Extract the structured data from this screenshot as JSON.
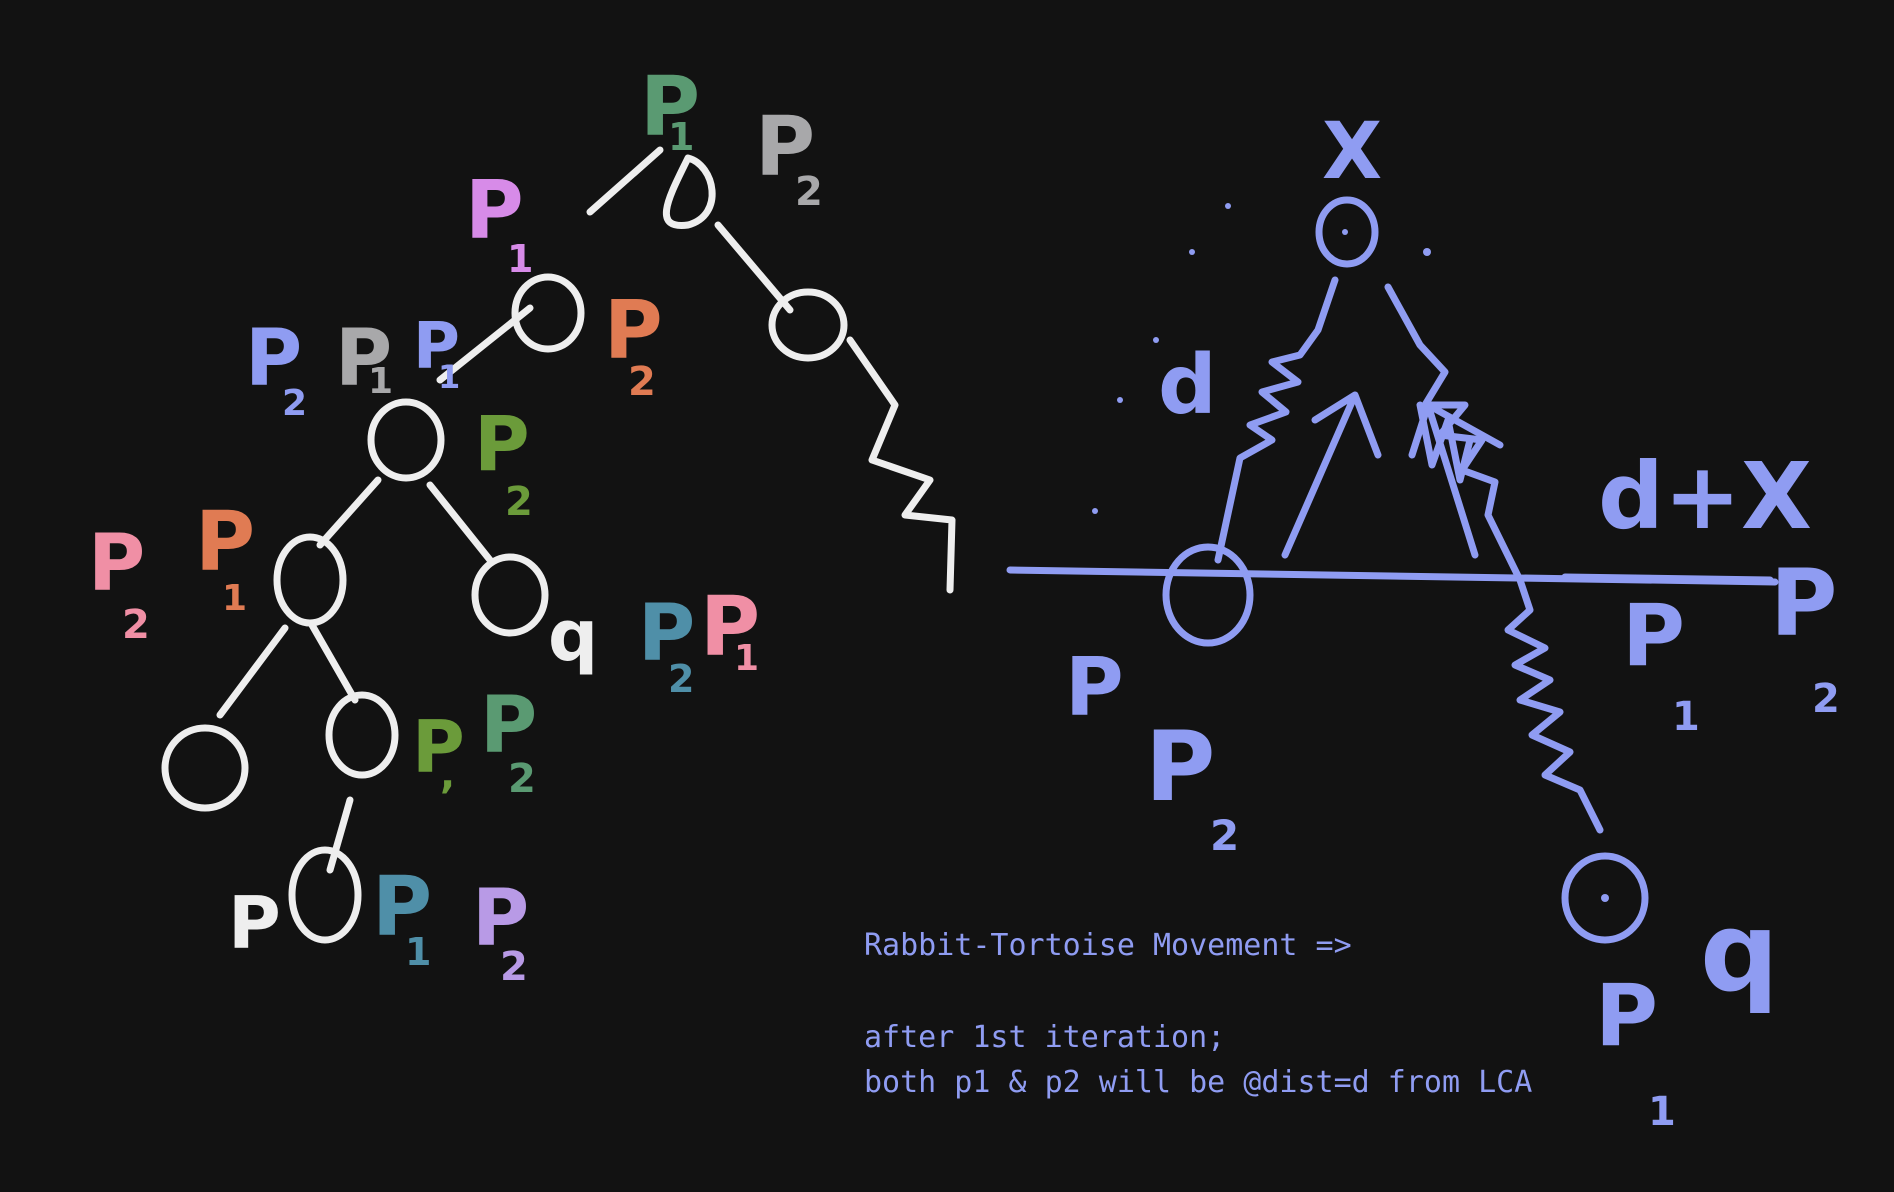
{
  "colors": {
    "background": "#121212",
    "tree": "#eeeeee",
    "diagram": "#8f9cf2",
    "green": "#5a9a72",
    "gray": "#a8a8aa",
    "violet": "#d78be8",
    "orange": "#e07b53",
    "olive": "#6b9b3a",
    "pink": "#f08fa5",
    "teal": "#4f8fa8",
    "blue": "#8f9cf2",
    "light_violet": "#b89ae6"
  },
  "tree_labels": {
    "root_p1": "P",
    "root_p1_sub": "1",
    "root_p2": "P",
    "root_p2_sub": "2",
    "l1_p1": "P",
    "l1_p1_sub": "1",
    "l1_p2": "P",
    "l1_p2_sub": "2",
    "l2_p2a": "P",
    "l2_p2a_sub": "2",
    "l2_p1": "P",
    "l2_p1_sub": "1",
    "l2_p1b": "P",
    "l2_p1b_sub": "1",
    "l2_p2b": "P",
    "l2_p2b_sub": "2",
    "l3_p2": "P",
    "l3_p2_sub": "2",
    "l3_p1": "P",
    "l3_p1_sub": "1",
    "q_label": "q",
    "q_p2": "P",
    "q_p2_sub": "2",
    "q_p1": "P",
    "q_p1_sub": "1",
    "l4_p1": "P",
    "l4_p1_sub": ",",
    "l4_p2": "P",
    "l4_p2_sub": "2",
    "p_label": "P",
    "p_p1": "P",
    "p_p1_sub": "1",
    "p_p2": "P",
    "p_p2_sub": "2"
  },
  "diagram_labels": {
    "x_top": "X",
    "d": "d",
    "d_plus_x": "d+X",
    "p_left": "P",
    "p2_left": "P",
    "p2_left_sub": "2",
    "p1_right": "P",
    "p1_right_sub": "1",
    "p2_right": "P",
    "p2_right_sub": "2",
    "q_right": "q",
    "p1_bottom": "P",
    "p1_bottom_sub": "1"
  },
  "note": {
    "line1": "Rabbit-Tortoise Movement =>",
    "line2": "after 1st iteration;",
    "line3": "both p1 & p2 will be @dist=d from LCA"
  }
}
